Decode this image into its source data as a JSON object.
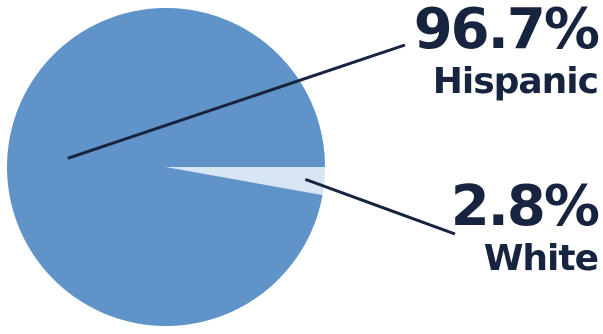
{
  "chart_data": {
    "type": "pie",
    "title": "",
    "slices": [
      {
        "label": "Hispanic",
        "value": 96.7,
        "value_label": "96.7%",
        "color": "#6094c9"
      },
      {
        "label": "White",
        "value": 2.8,
        "value_label": "2.8%",
        "color": "#d8e6f4"
      }
    ],
    "label_color": "#16243f",
    "legend": "none"
  }
}
